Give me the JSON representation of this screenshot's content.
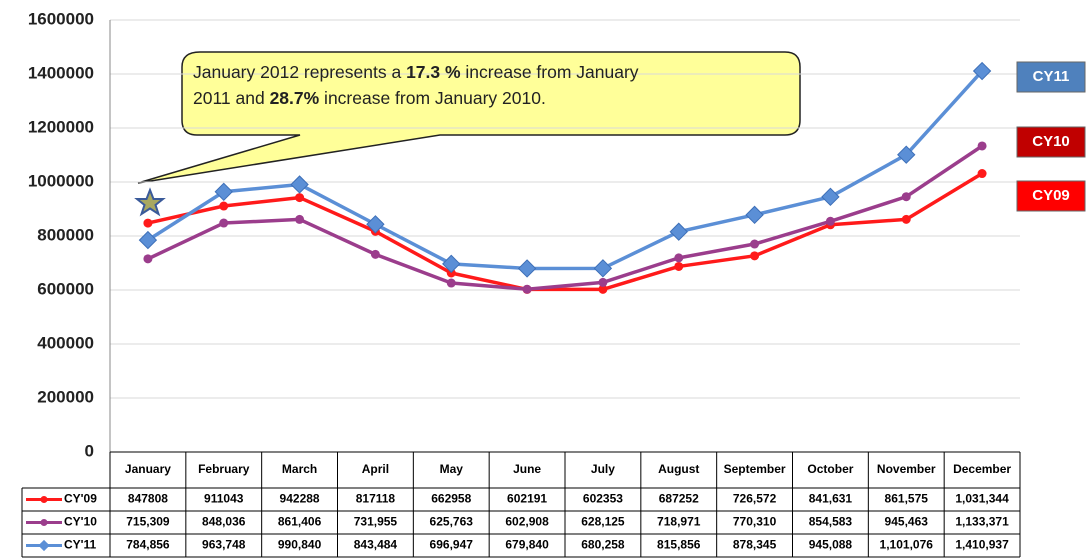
{
  "chart_data": {
    "type": "line",
    "annotation": {
      "lines": [
        [
          {
            "text": "January 2012  represents a ",
            "bold": false
          },
          {
            "text": "17.3 %",
            "bold": true
          },
          {
            "text": "  increase from  January",
            "bold": false
          }
        ],
        [
          {
            "text": "2011 and ",
            "bold": false
          },
          {
            "text": "28.7%",
            "bold": true
          },
          {
            "text": " increase from January 2010.",
            "bold": false
          }
        ]
      ]
    },
    "categories": [
      "January",
      "February",
      "March",
      "April",
      "May",
      "June",
      "July",
      "August",
      "September",
      "October",
      "November",
      "December"
    ],
    "series": [
      {
        "name": "CY09",
        "table_label": "CY'09",
        "color": "#ff1a1a",
        "legend_color": "#ff0000",
        "marker": "circle",
        "values": [
          847808,
          911043,
          942288,
          817118,
          662958,
          602191,
          602353,
          687252,
          726572,
          841631,
          861575,
          1031344
        ],
        "value_labels": [
          "847808",
          "911043",
          "942288",
          "817118",
          "662958",
          "602191",
          "602353",
          "687252",
          "726,572",
          "841,631",
          "861,575",
          "1,031,344"
        ]
      },
      {
        "name": "CY10",
        "table_label": "CY'10",
        "color": "#9b3d8c",
        "legend_color": "#c00000",
        "marker": "circle",
        "values": [
          715309,
          848036,
          861406,
          731955,
          625763,
          602908,
          628125,
          718971,
          770310,
          854583,
          945463,
          1133371
        ],
        "value_labels": [
          "715,309",
          "848,036",
          "861,406",
          "731,955",
          "625,763",
          "602,908",
          "628,125",
          "718,971",
          "770,310",
          "854,583",
          "945,463",
          "1,133,371"
        ]
      },
      {
        "name": "CY11",
        "table_label": "CY'11",
        "color": "#5b8fd6",
        "legend_color": "#4f81bd",
        "marker": "diamond",
        "values": [
          784856,
          963748,
          990840,
          843484,
          696947,
          679840,
          680258,
          815856,
          878345,
          945088,
          1101076,
          1410937
        ],
        "value_labels": [
          "784,856",
          "963,748",
          "990,840",
          "843,484",
          "696,947",
          "679,840",
          "680,258",
          "815,856",
          "878,345",
          "945,088",
          "1,101,076",
          "1,410,937"
        ]
      }
    ],
    "ylim": [
      0,
      1600000
    ],
    "yticks": [
      0,
      200000,
      400000,
      600000,
      800000,
      1000000,
      1200000,
      1400000,
      1600000
    ],
    "grid": true
  }
}
